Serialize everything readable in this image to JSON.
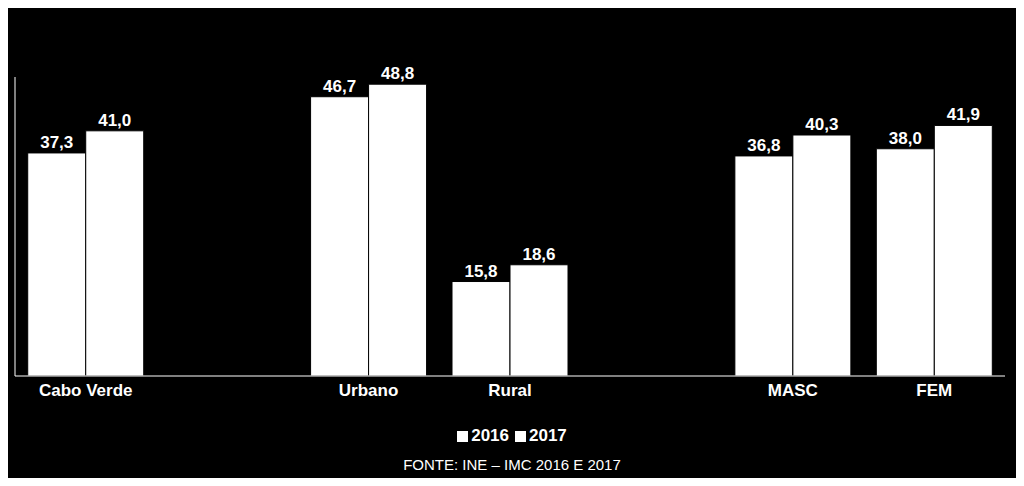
{
  "chart_data": {
    "type": "bar",
    "categories": [
      "Cabo Verde",
      null,
      "Urbano",
      "Rural",
      null,
      "MASC",
      "FEM"
    ],
    "series": [
      {
        "name": "2016",
        "color": "#ffffff",
        "values": [
          37.3,
          null,
          46.7,
          15.8,
          null,
          36.8,
          38.0
        ],
        "value_labels": [
          "37,3",
          null,
          "46,7",
          "15,8",
          null,
          "36,8",
          "38,0"
        ]
      },
      {
        "name": "2017",
        "color": "#ffffff",
        "values": [
          41.0,
          null,
          48.8,
          18.6,
          null,
          40.3,
          41.9
        ],
        "value_labels": [
          "41,0",
          null,
          "48,8",
          "18,6",
          null,
          "40,3",
          "41,9"
        ]
      }
    ],
    "ylim": [
      0,
      50
    ],
    "tick_labels": "x",
    "data_labels": true,
    "grid": false,
    "legend": "bottom",
    "source": "FONTE: INE – IMC 2016 E 2017"
  }
}
